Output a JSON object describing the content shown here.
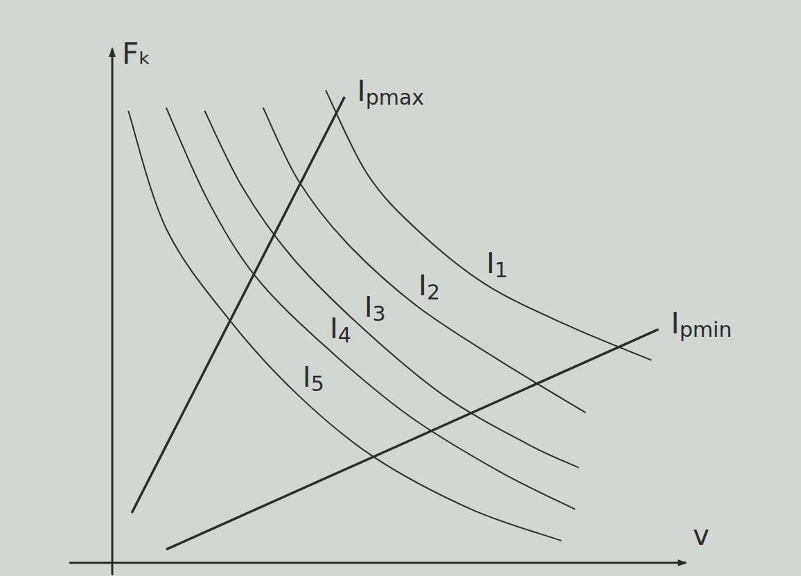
{
  "chart_data": {
    "type": "line",
    "xlabel": "v",
    "ylabel": "Fₖ",
    "xlim": [
      0,
      100
    ],
    "ylim": [
      0,
      100
    ],
    "tick_labels": false,
    "grid": false,
    "color": "#2b2b2b",
    "series": [
      {
        "name": "I1",
        "line_style": "solid",
        "x": [
          37.2,
          44.4,
          52.9,
          65.0,
          79.5,
          94.0
        ],
        "values": [
          91.9,
          75.7,
          65.0,
          54.2,
          46.1,
          39.4
        ]
      },
      {
        "name": "I2",
        "line_style": "solid",
        "x": [
          26.3,
          32.4,
          40.8,
          52.9,
          67.4,
          82.5
        ],
        "values": [
          88.5,
          74.4,
          62.3,
          50.1,
          39.4,
          29.2
        ]
      },
      {
        "name": "I3",
        "line_style": "solid",
        "x": [
          16.1,
          22.7,
          31.2,
          43.2,
          57.7,
          72.2,
          81.3
        ],
        "values": [
          87.9,
          73.0,
          59.6,
          46.1,
          32.6,
          23.2,
          18.5
        ]
      },
      {
        "name": "I4",
        "line_style": "solid",
        "x": [
          9.4,
          16.7,
          25.1,
          37.2,
          51.7,
          67.4,
          80.7
        ],
        "values": [
          88.5,
          70.4,
          55.5,
          42.0,
          28.6,
          17.8,
          10.4
        ]
      },
      {
        "name": "I5",
        "line_style": "solid",
        "x": [
          2.8,
          9.4,
          20.3,
          32.4,
          45.7,
          62.6,
          78.3
        ],
        "values": [
          87.9,
          65.0,
          47.4,
          32.6,
          20.5,
          10.4,
          4.3
        ]
      },
      {
        "name": "Ipmax",
        "line_style": "solid",
        "x": [
          3.4,
          40.5
        ],
        "values": [
          9.7,
          90.6
        ]
      },
      {
        "name": "Ipmin",
        "line_style": "solid",
        "x": [
          9.4,
          95.2
        ],
        "values": [
          2.6,
          45.4
        ]
      }
    ]
  }
}
